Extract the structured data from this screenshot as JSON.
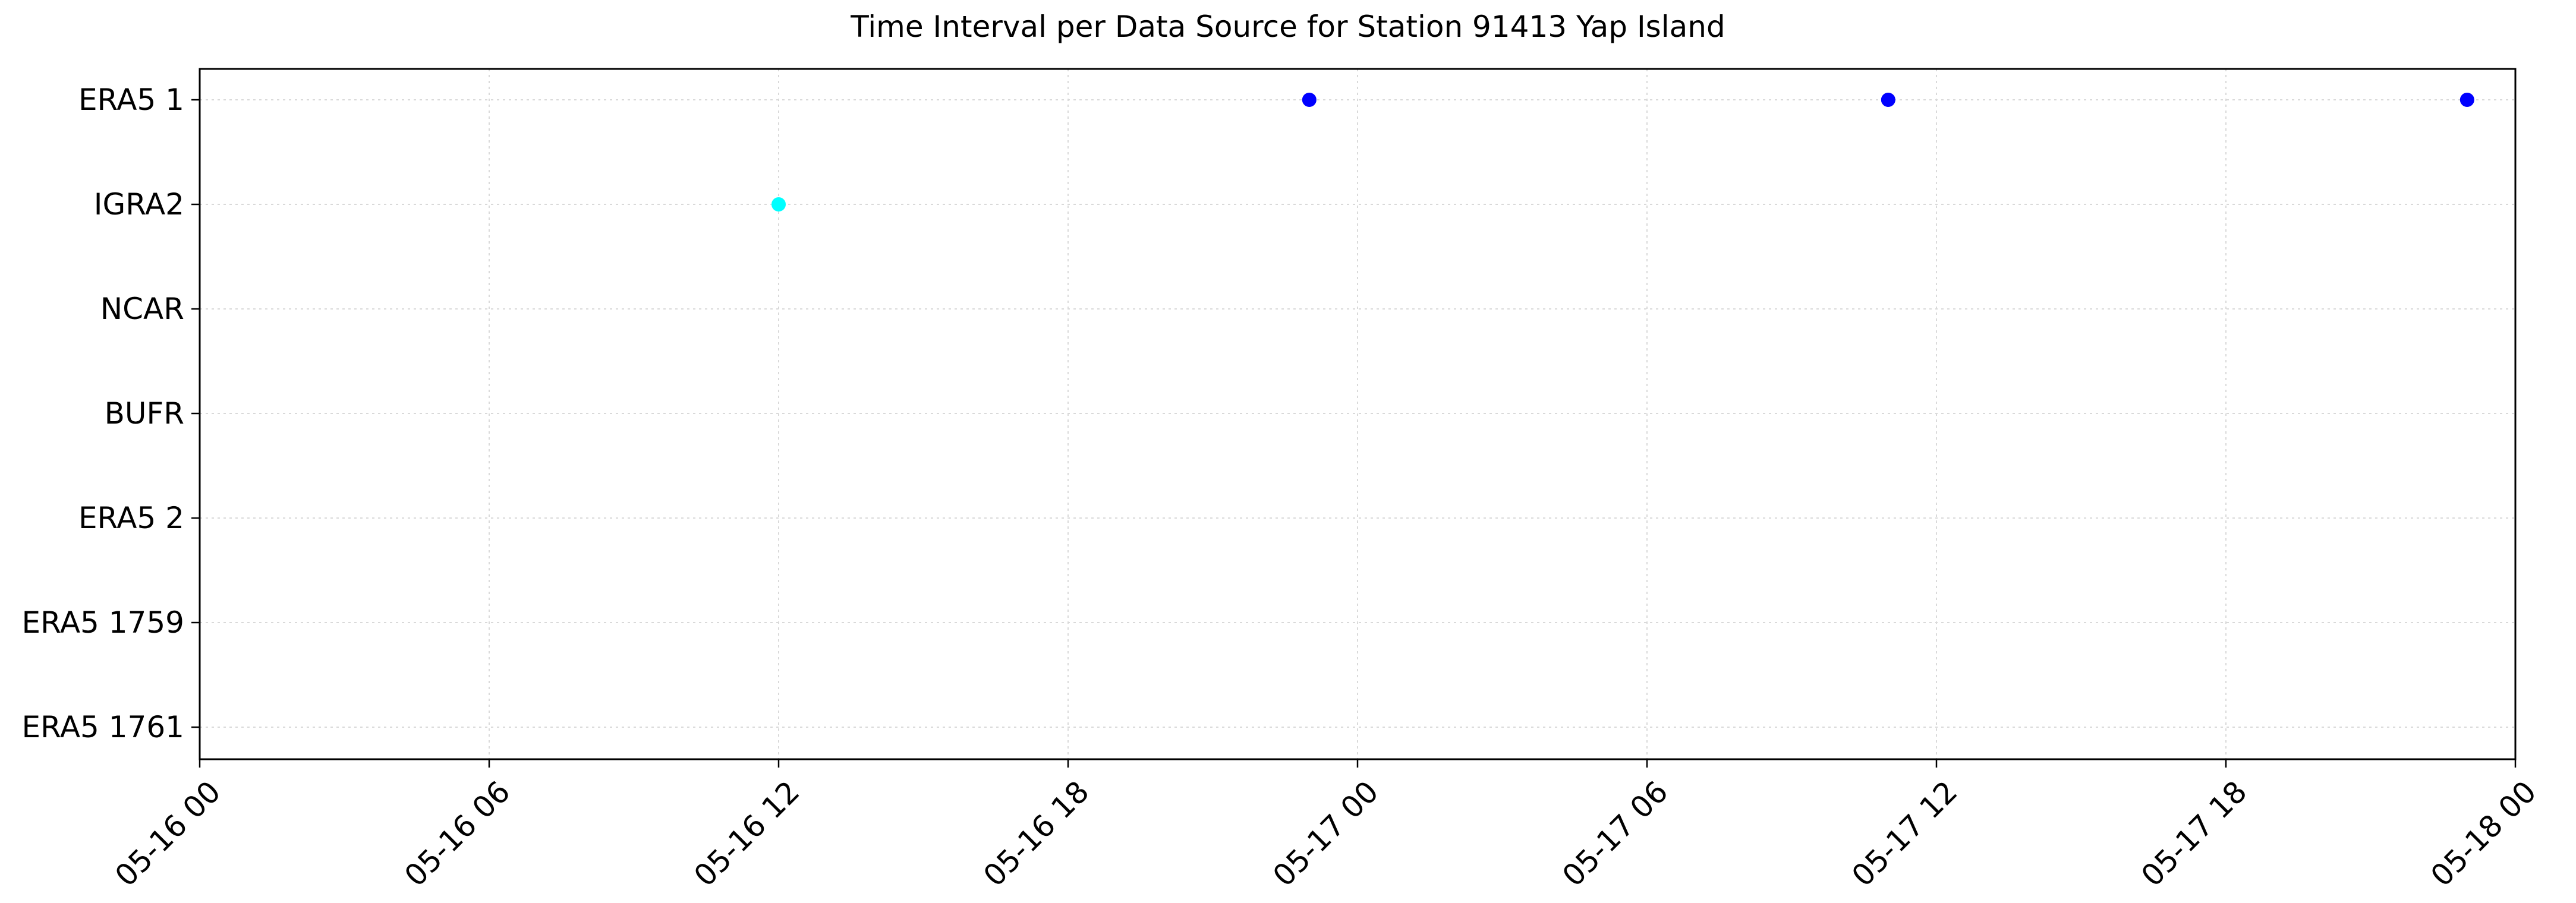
{
  "chart_data": {
    "type": "scatter",
    "title": "Time Interval per Data Source for Station 91413 Yap Island",
    "xlabel": "",
    "ylabel": "",
    "categories": [
      "ERA5 1",
      "IGRA2",
      "NCAR",
      "BUFR",
      "ERA5 2",
      "ERA5 1759",
      "ERA5 1761"
    ],
    "x_ticks": [
      {
        "value": "2024-05-16T00:00",
        "label": "05-16 00"
      },
      {
        "value": "2024-05-16T06:00",
        "label": "05-16 06"
      },
      {
        "value": "2024-05-16T12:00",
        "label": "05-16 12"
      },
      {
        "value": "2024-05-16T18:00",
        "label": "05-16 18"
      },
      {
        "value": "2024-05-17T00:00",
        "label": "05-17 00"
      },
      {
        "value": "2024-05-17T06:00",
        "label": "05-17 06"
      },
      {
        "value": "2024-05-17T12:00",
        "label": "05-17 12"
      },
      {
        "value": "2024-05-17T18:00",
        "label": "05-17 18"
      },
      {
        "value": "2024-05-18T00:00",
        "label": "05-18 00"
      }
    ],
    "xlim": [
      "2024-05-16T00:00",
      "2024-05-18T00:00"
    ],
    "grid": true,
    "series": [
      {
        "category": "ERA5 1",
        "color": "#0000ff",
        "points": [
          "2024-05-16T23:00",
          "2024-05-17T11:00",
          "2024-05-17T23:00"
        ]
      },
      {
        "category": "IGRA2",
        "color": "#00ffff",
        "points": [
          "2024-05-16T12:00"
        ]
      }
    ]
  }
}
